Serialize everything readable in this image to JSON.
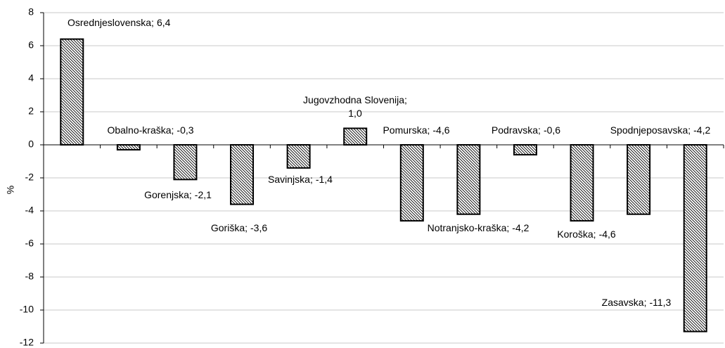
{
  "chart_data": {
    "type": "bar",
    "y_label": "%",
    "categories": [
      "Osrednjeslovenska;",
      "Obalno-kraška;",
      "Gorenjska;",
      "Goriška;",
      "Savinjska;",
      "Jugovzhodna Slovenija;",
      "Pomurska;",
      "Notranjsko-kraška;",
      "Podravska;",
      "Koroška;",
      "Spodnjeposavska;",
      "Zasavska;"
    ],
    "values": [
      6.4,
      -0.3,
      -2.1,
      -3.6,
      -1.4,
      1.0,
      -4.6,
      -4.2,
      -0.6,
      -4.6,
      -4.2,
      -11.3
    ],
    "value_labels": [
      "6,4",
      "-0,3",
      "-2,1",
      "-3,6",
      "-1,4",
      "1,0",
      "-4,6",
      "-4,2",
      "-0,6",
      "-4,6",
      "-4,2",
      "-11,3"
    ],
    "color": "#000000",
    "ylim": [
      -12,
      8
    ],
    "yticks": [
      -12,
      -10,
      -8,
      -6,
      -4,
      -2,
      0,
      2,
      4,
      6,
      8
    ],
    "grid": true
  }
}
